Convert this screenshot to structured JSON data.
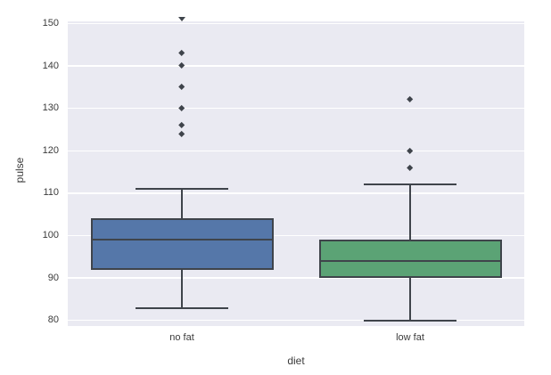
{
  "chart_data": {
    "type": "box",
    "title": "",
    "xlabel": "diet",
    "ylabel": "pulse",
    "categories": [
      "no fat",
      "low fat"
    ],
    "yticks": [
      80,
      90,
      100,
      110,
      120,
      130,
      140,
      150
    ],
    "ylim": [
      78.7,
      150.5
    ],
    "grid": "horizontal",
    "legend": "none",
    "series": [
      {
        "name": "no fat",
        "box_color": "#5577a9",
        "whisker_low": 83,
        "q1": 92,
        "median": 99,
        "q3": 104,
        "whisker_high": 111,
        "outliers": [
          124,
          126,
          130,
          135,
          140,
          143
        ],
        "clipped_outliers": [
          150
        ]
      },
      {
        "name": "low fat",
        "box_color": "#5ba375",
        "whisker_low": 80,
        "q1": 90,
        "median": 94,
        "q3": 99,
        "whisker_high": 112,
        "outliers": [
          116,
          120,
          132
        ],
        "clipped_outliers": []
      }
    ],
    "colors": {
      "plot_background": "#eaeaf2",
      "gridline": "#ffffff",
      "line": "#3f444b",
      "text": "#3b3b3b",
      "figure_background": "#ffffff"
    }
  }
}
